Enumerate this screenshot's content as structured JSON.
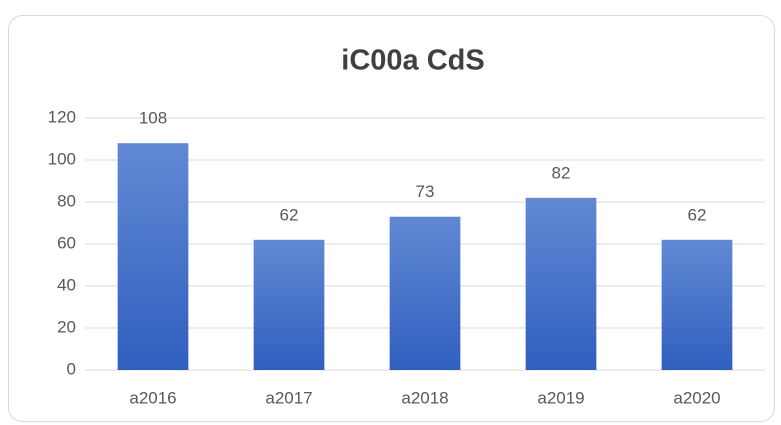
{
  "chart_data": {
    "type": "bar",
    "title": "iC00a CdS",
    "categories": [
      "a2016",
      "a2017",
      "a2018",
      "a2019",
      "a2020"
    ],
    "values": [
      108,
      62,
      73,
      82,
      62
    ],
    "color": "#2f5fbf",
    "ylim": [
      0,
      120
    ],
    "yticks": [
      0,
      20,
      40,
      60,
      80,
      100,
      120
    ],
    "grid": true,
    "data_labels": true
  }
}
